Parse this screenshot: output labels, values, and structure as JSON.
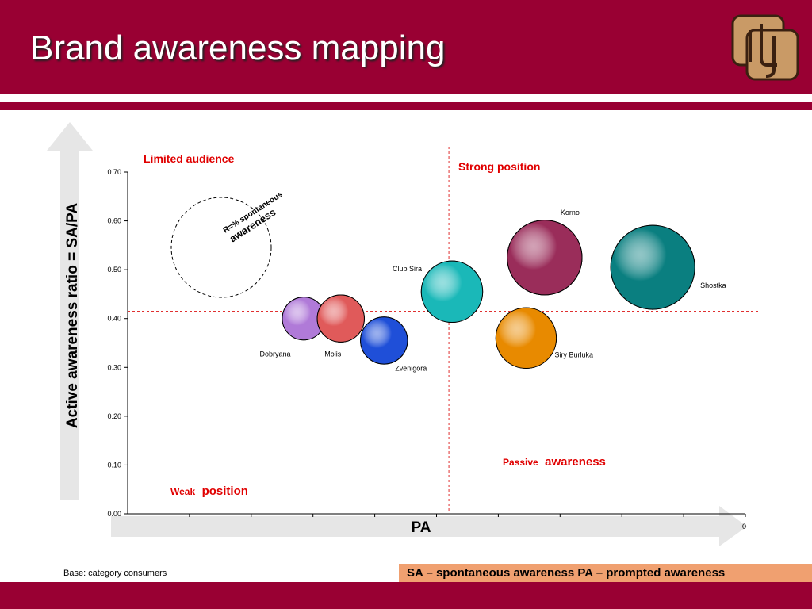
{
  "slide": {
    "title": "Brand awareness mapping",
    "base_note": "Base: category consumers",
    "definitions": "SA – spontaneous awareness   PA – prompted awareness"
  },
  "colors": {
    "header_red": "#990033",
    "quadrant_label_red": "#e00000",
    "legend_box": "#f0a070",
    "arrow_gray": "#e6e6e6"
  },
  "chart_data": {
    "type": "scatter",
    "variant": "bubble",
    "xlabel": "PA",
    "ylabel": "Active awareness ratio = SA/PA",
    "ylim": [
      0,
      0.7
    ],
    "y_ticks": [
      "0.00",
      "0.10",
      "0.20",
      "0.30",
      "0.40",
      "0.50",
      "0.60",
      "0.70"
    ],
    "x_tick_count": 10,
    "x_last_tick_partial": "0",
    "grid": false,
    "reference_lines": {
      "x_fraction": 0.52,
      "y": 0.415
    },
    "quadrant_labels": {
      "top_left": "Limited audience",
      "top_right": "Strong position",
      "bottom_left_small": "Weak",
      "bottom_left_big": "position",
      "bottom_right_small": "Passive",
      "bottom_right_big": "awareness"
    },
    "size_legend": {
      "line1": "R=% spontaneous",
      "line2": "awareness"
    },
    "points": [
      {
        "name": "Dobryana",
        "x_fraction": 0.285,
        "y": 0.4,
        "r_rel": 0.51,
        "color": "#b07ad8"
      },
      {
        "name": "Molis",
        "x_fraction": 0.345,
        "y": 0.4,
        "r_rel": 0.56,
        "color": "#e05a5a"
      },
      {
        "name": "Zvenigora",
        "x_fraction": 0.415,
        "y": 0.355,
        "r_rel": 0.56,
        "color": "#1f4fd8"
      },
      {
        "name": "Club Sira",
        "x_fraction": 0.525,
        "y": 0.455,
        "r_rel": 0.73,
        "color": "#1ab8b8"
      },
      {
        "name": "Korno",
        "x_fraction": 0.675,
        "y": 0.525,
        "r_rel": 0.89,
        "color": "#9a2d5a"
      },
      {
        "name": "Siry Burluka",
        "x_fraction": 0.645,
        "y": 0.36,
        "r_rel": 0.72,
        "color": "#e88a00"
      },
      {
        "name": "Shostka",
        "x_fraction": 0.85,
        "y": 0.505,
        "r_rel": 1.0,
        "color": "#0a7f80"
      }
    ]
  }
}
